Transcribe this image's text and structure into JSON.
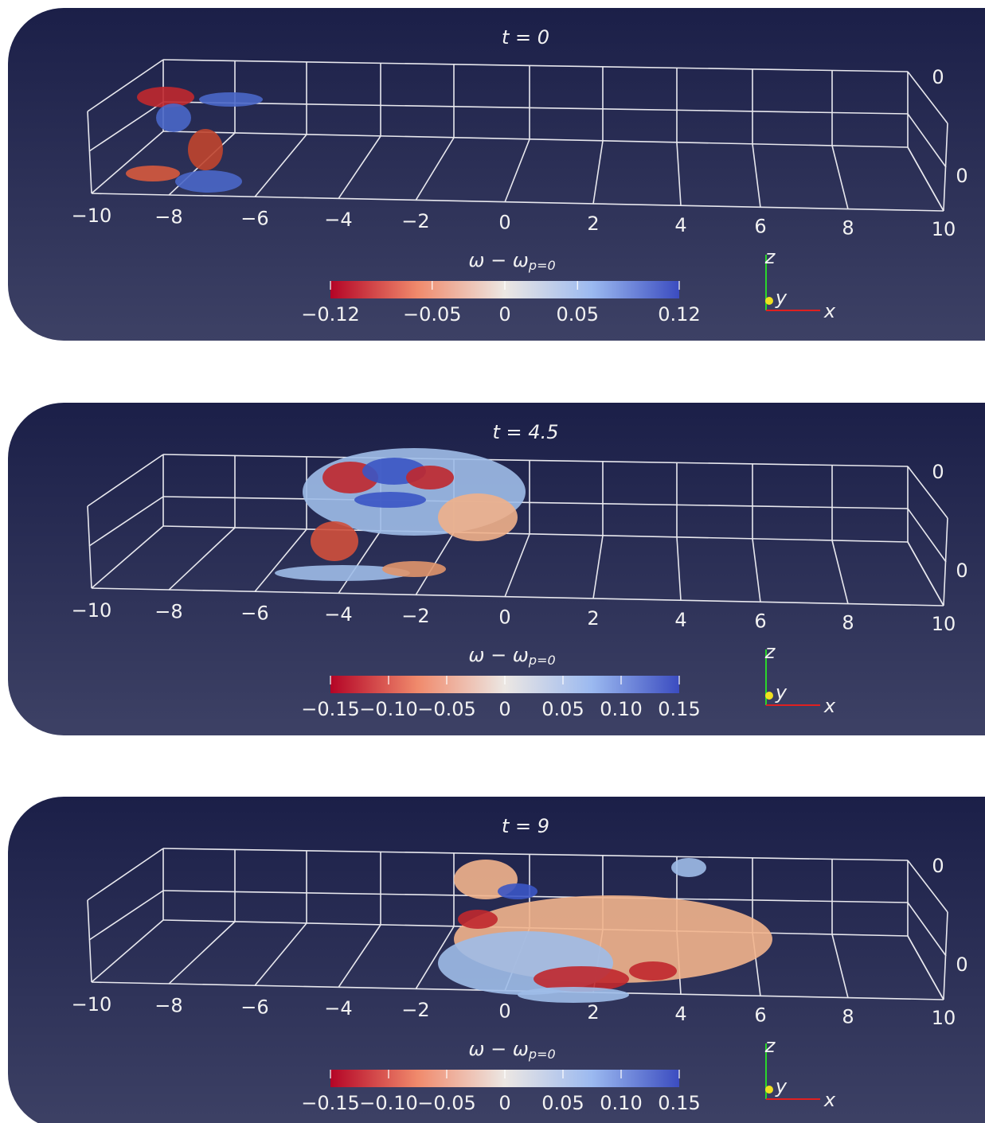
{
  "panels": [
    {
      "title": "t = 0",
      "x_ticks": [
        "−10",
        "−8",
        "−6",
        "−4",
        "−2",
        "0",
        "2",
        "4",
        "6",
        "8",
        "10"
      ],
      "z_ticks": [
        "0",
        "0"
      ],
      "colorbar": {
        "symbol": "ω − ω",
        "subscript": "p=0",
        "range": [
          -0.12,
          0.12
        ],
        "ticks": [
          {
            "value": -0.12,
            "label": "−0.12"
          },
          {
            "value": -0.05,
            "label": "−0.05"
          },
          0,
          0.05,
          0.12
        ]
      },
      "triad": [
        "x",
        "y",
        "z"
      ]
    },
    {
      "title": "t = 4.5",
      "x_ticks": [
        "−10",
        "−8",
        "−6",
        "−4",
        "−2",
        "0",
        "2",
        "4",
        "6",
        "8",
        "10"
      ],
      "z_ticks": [
        "0",
        "0"
      ],
      "colorbar": {
        "symbol": "ω − ω",
        "subscript": "p=0",
        "range": [
          -0.15,
          0.15
        ],
        "ticks": [
          {
            "value": -0.15,
            "label": "−0.15"
          },
          {
            "value": -0.1,
            "label": "−0.10"
          },
          {
            "value": -0.05,
            "label": "−0.05"
          },
          0,
          0.05,
          {
            "value": 0.1,
            "label": "0.10"
          },
          0.15
        ]
      },
      "triad": [
        "x",
        "y",
        "z"
      ]
    },
    {
      "title": "t = 9",
      "x_ticks": [
        "−10",
        "−8",
        "−6",
        "−4",
        "−2",
        "0",
        "2",
        "4",
        "6",
        "8",
        "10"
      ],
      "z_ticks": [
        "0",
        "0"
      ],
      "colorbar": {
        "symbol": "ω − ω",
        "subscript": "p=0",
        "range": [
          -0.15,
          0.15
        ],
        "ticks": [
          {
            "value": -0.15,
            "label": "−0.15"
          },
          {
            "value": -0.1,
            "label": "−0.10"
          },
          {
            "value": -0.05,
            "label": "−0.05"
          },
          0,
          0.05,
          {
            "value": 0.1,
            "label": "0.10"
          },
          0.15
        ]
      },
      "triad": [
        "x",
        "y",
        "z"
      ]
    }
  ]
}
